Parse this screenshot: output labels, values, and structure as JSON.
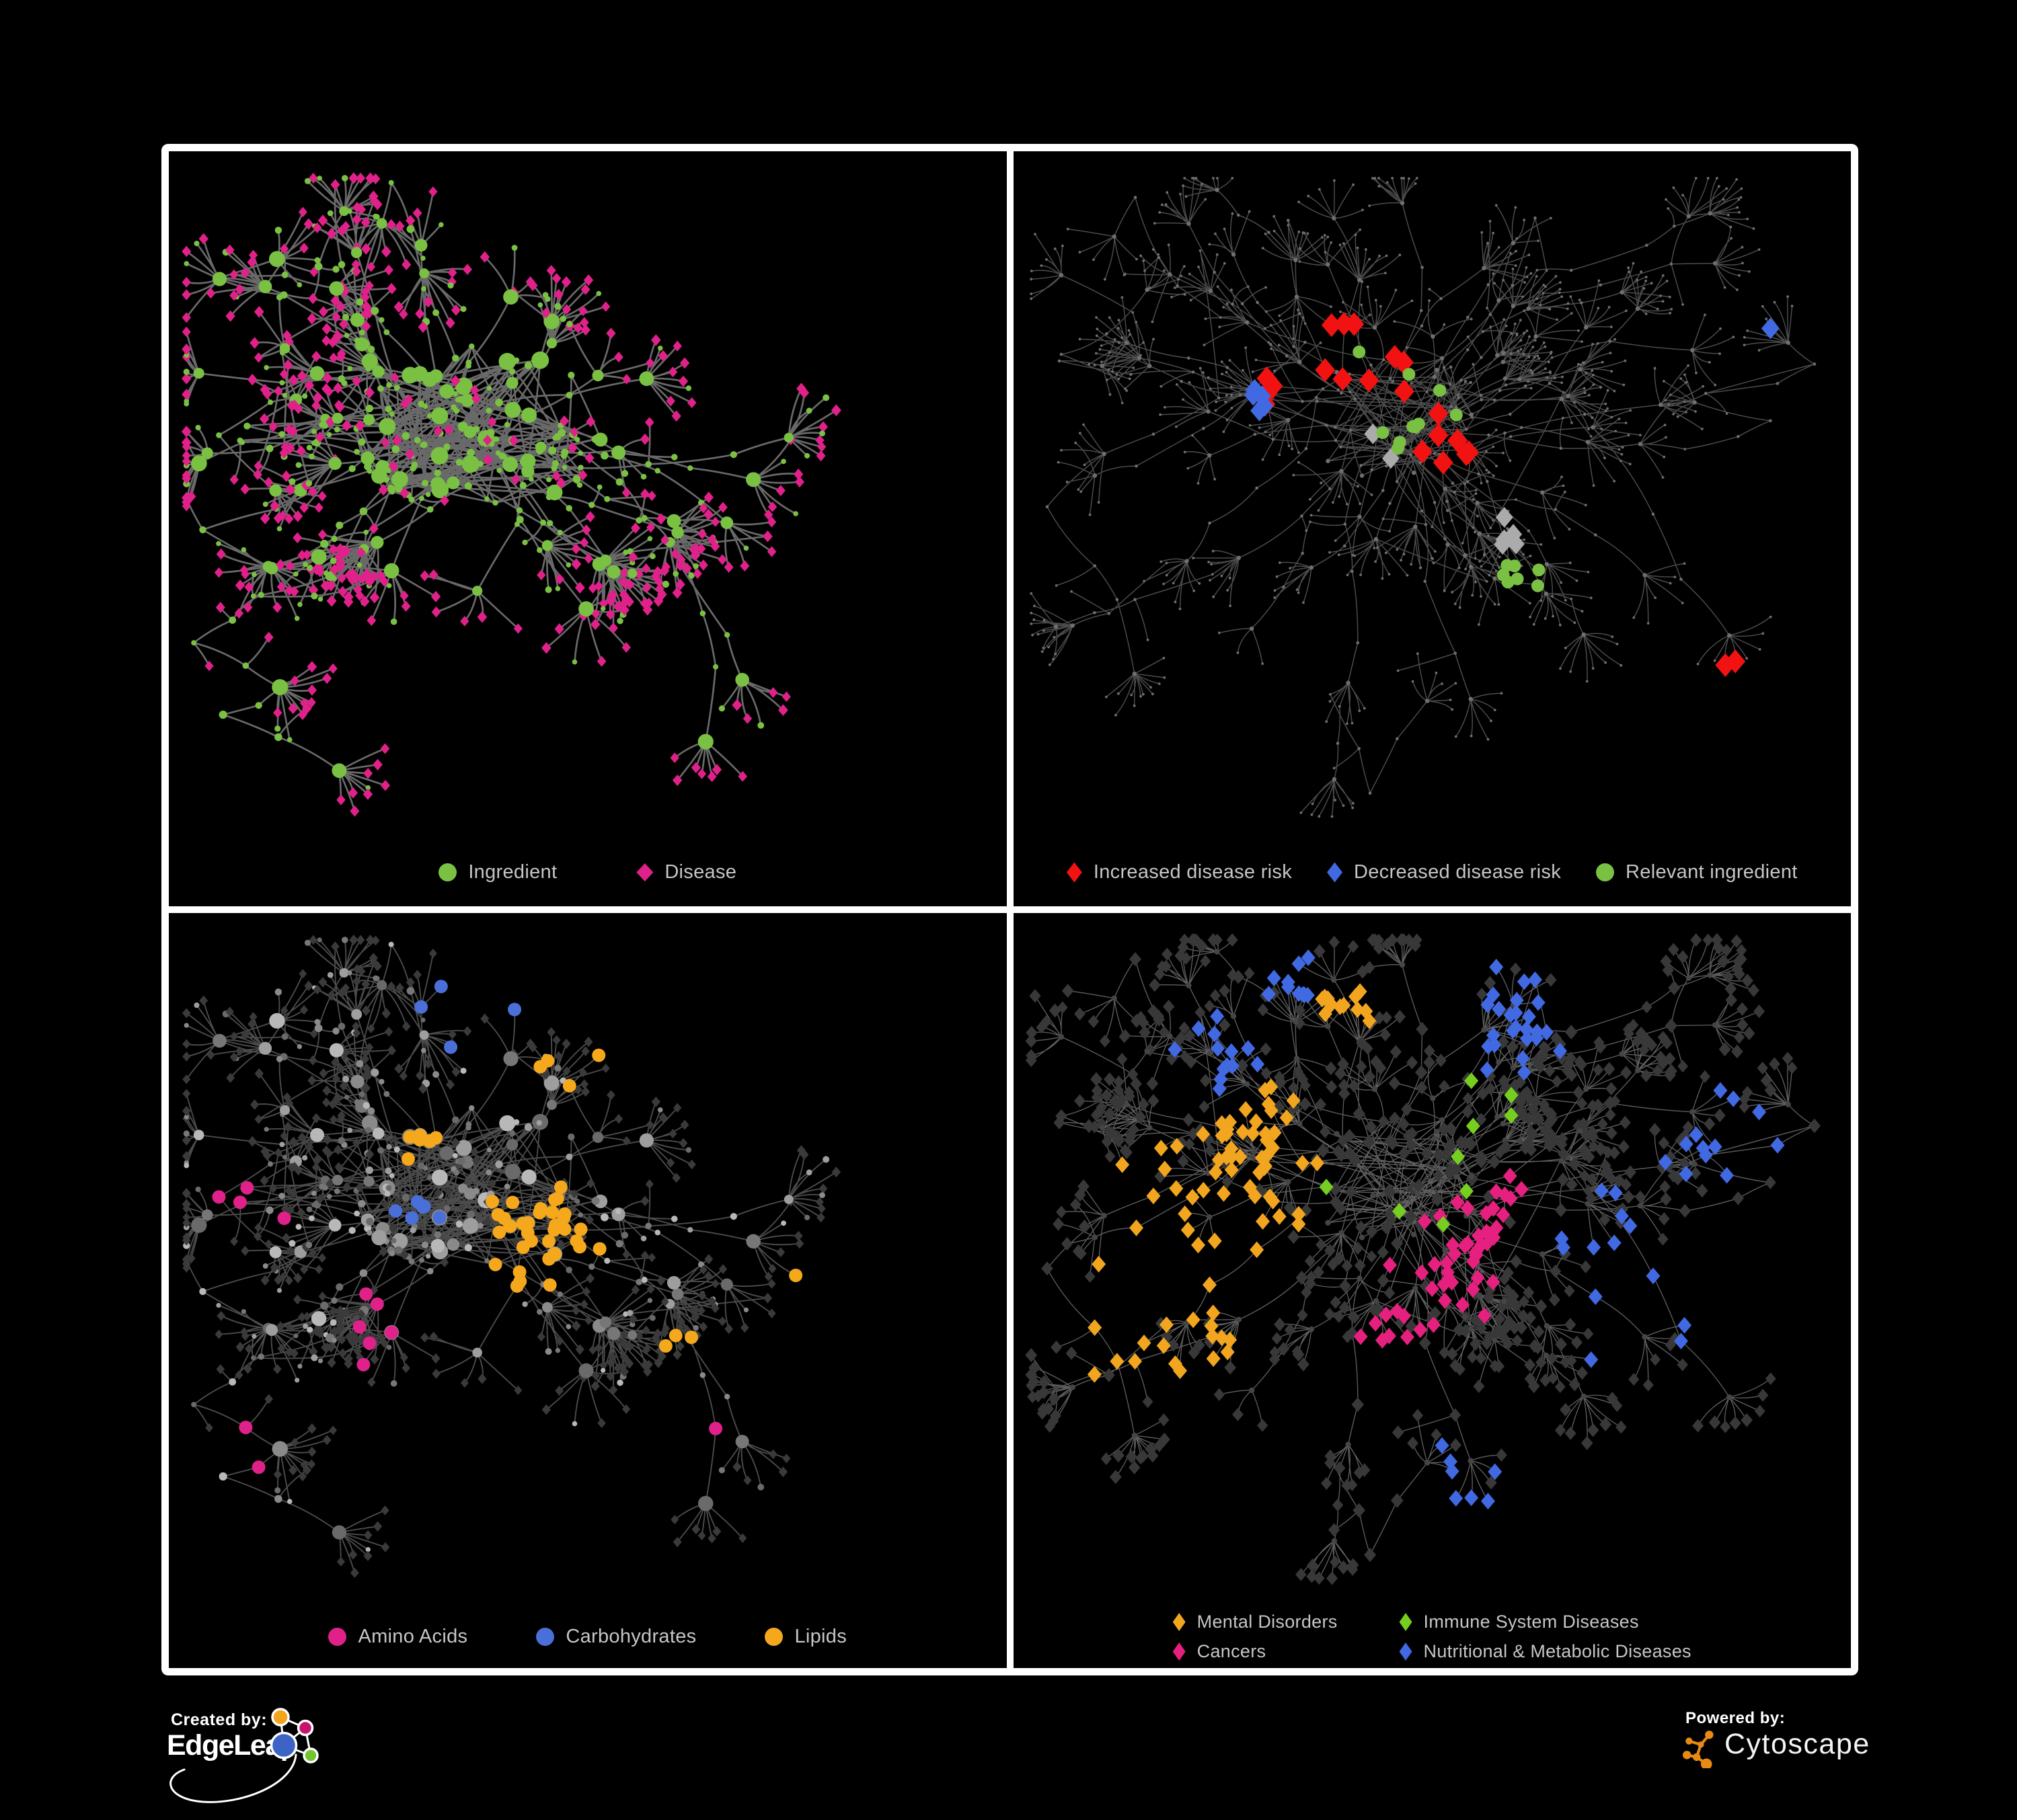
{
  "panels": [
    {
      "name": "ingredient-disease-network",
      "legend": [
        {
          "label": "Ingredient",
          "shape": "circle",
          "color": "#7AC143"
        },
        {
          "label": "Disease",
          "shape": "diamond",
          "color": "#E0218A"
        }
      ],
      "style": {
        "edge": "#6F6F6F",
        "circle": "#7AC143",
        "diamond": "#E0218A"
      }
    },
    {
      "name": "disease-risk-network",
      "legend": [
        {
          "label": "Increased disease risk",
          "shape": "diamond",
          "color": "#F21212"
        },
        {
          "label": "Decreased disease risk",
          "shape": "diamond",
          "color": "#4169E1"
        },
        {
          "label": "Relevant ingredient",
          "shape": "circle",
          "color": "#7AC143"
        }
      ],
      "style": {
        "edge": "#585858",
        "dot": "#6F6F6F",
        "extra_diamond": "#ABABAB"
      }
    },
    {
      "name": "nutrient-class-network",
      "legend": [
        {
          "label": "Amino Acids",
          "shape": "circle",
          "color": "#E0218A"
        },
        {
          "label": "Carbohydrates",
          "shape": "circle",
          "color": "#4A6FD9"
        },
        {
          "label": "Lipids",
          "shape": "circle",
          "color": "#F5A81C"
        }
      ],
      "style": {
        "edge": "#5E5E5E",
        "circle_grays": [
          "#9E9E9E",
          "#8A8A8A",
          "#B8B8B8",
          "#777777",
          "#6A6A6A"
        ],
        "diamond": "#3A3A3A"
      }
    },
    {
      "name": "disease-category-network",
      "legend": [
        {
          "label": "Mental Disorders",
          "shape": "diamond",
          "color": "#F2A51E"
        },
        {
          "label": "Immune System Diseases",
          "shape": "diamond",
          "color": "#76CE21"
        },
        {
          "label": "Cancers",
          "shape": "diamond",
          "color": "#E6207E"
        },
        {
          "label": "Nutritional & Metabolic Diseases",
          "shape": "diamond",
          "color": "#4169E1"
        }
      ],
      "style": {
        "edge": "#6E6E6E",
        "diamond": "#383838",
        "dot": "#454545"
      }
    }
  ],
  "footer": {
    "created_by": "Created by:",
    "edgeleap": "EdgeLeap",
    "powered_by": "Powered by:",
    "cytoscape": "Cytoscape",
    "edgeleap_colors": {
      "blue": "#3E63C6",
      "orange": "#F2A51B",
      "magenta": "#C8136B",
      "green": "#72C531"
    },
    "cytoscape_orange": "#E98A15"
  }
}
